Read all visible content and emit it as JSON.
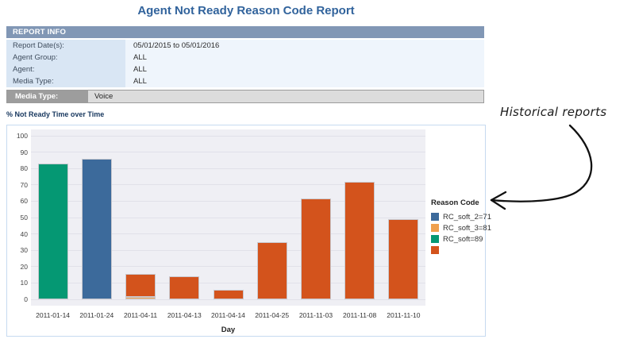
{
  "page_title": "Agent Not Ready Reason Code Report",
  "report_info": {
    "header": "REPORT INFO",
    "rows": [
      {
        "label": "Report Date(s):",
        "value": "05/01/2015 to 05/01/2016"
      },
      {
        "label": "Agent Group:",
        "value": "ALL"
      },
      {
        "label": "Agent:",
        "value": "ALL"
      },
      {
        "label": "Media Type:",
        "value": "ALL"
      }
    ]
  },
  "media_type_bar": {
    "label": "Media Type:",
    "value": "Voice"
  },
  "annotation": {
    "text": "Historical reports"
  },
  "chart_data": {
    "type": "bar",
    "stacked": true,
    "title": "% Not Ready Time over Time",
    "xlabel": "Day",
    "ylabel": "",
    "ylim": [
      0,
      100
    ],
    "ytick_step": 10,
    "grid": true,
    "legend_title": "Reason Code",
    "legend_position": "right",
    "categories": [
      "2011-01-14",
      "2011-01-24",
      "2011-04-11",
      "2011-04-13",
      "2011-04-14",
      "2011-04-25",
      "2011-11-03",
      "2011-11-08",
      "2011-11-10"
    ],
    "series": [
      {
        "name": "RC_soft_2=71",
        "color": "#3c6a9b",
        "values": [
          0,
          86,
          0,
          0,
          0,
          0,
          0,
          0,
          0
        ]
      },
      {
        "name": "RC_soft_3=81",
        "color": "#efa04e",
        "values": [
          0,
          0,
          1.5,
          0,
          0,
          0,
          0,
          0,
          0
        ]
      },
      {
        "name": "RC_soft=89",
        "color": "#059873",
        "values": [
          83,
          0,
          0,
          0,
          0,
          0,
          0,
          0,
          0
        ]
      },
      {
        "name": "",
        "color": "#d3531c",
        "values": [
          0,
          0,
          14,
          14,
          6,
          35,
          61.5,
          72,
          49
        ]
      }
    ]
  },
  "colors": {
    "title": "#31639c",
    "report_header_bg": "#8197b5",
    "label_cell_bg": "#d9e6f4",
    "value_cell_bg": "#eff5fc",
    "media_label_bg": "#9d9d9d",
    "media_value_bg": "#dcdcdc",
    "chart_border": "#c6daf0",
    "plot_bg": "#efeff4",
    "gridline": "#e1e1e9",
    "annotation_ink": "#1a1a1a"
  }
}
